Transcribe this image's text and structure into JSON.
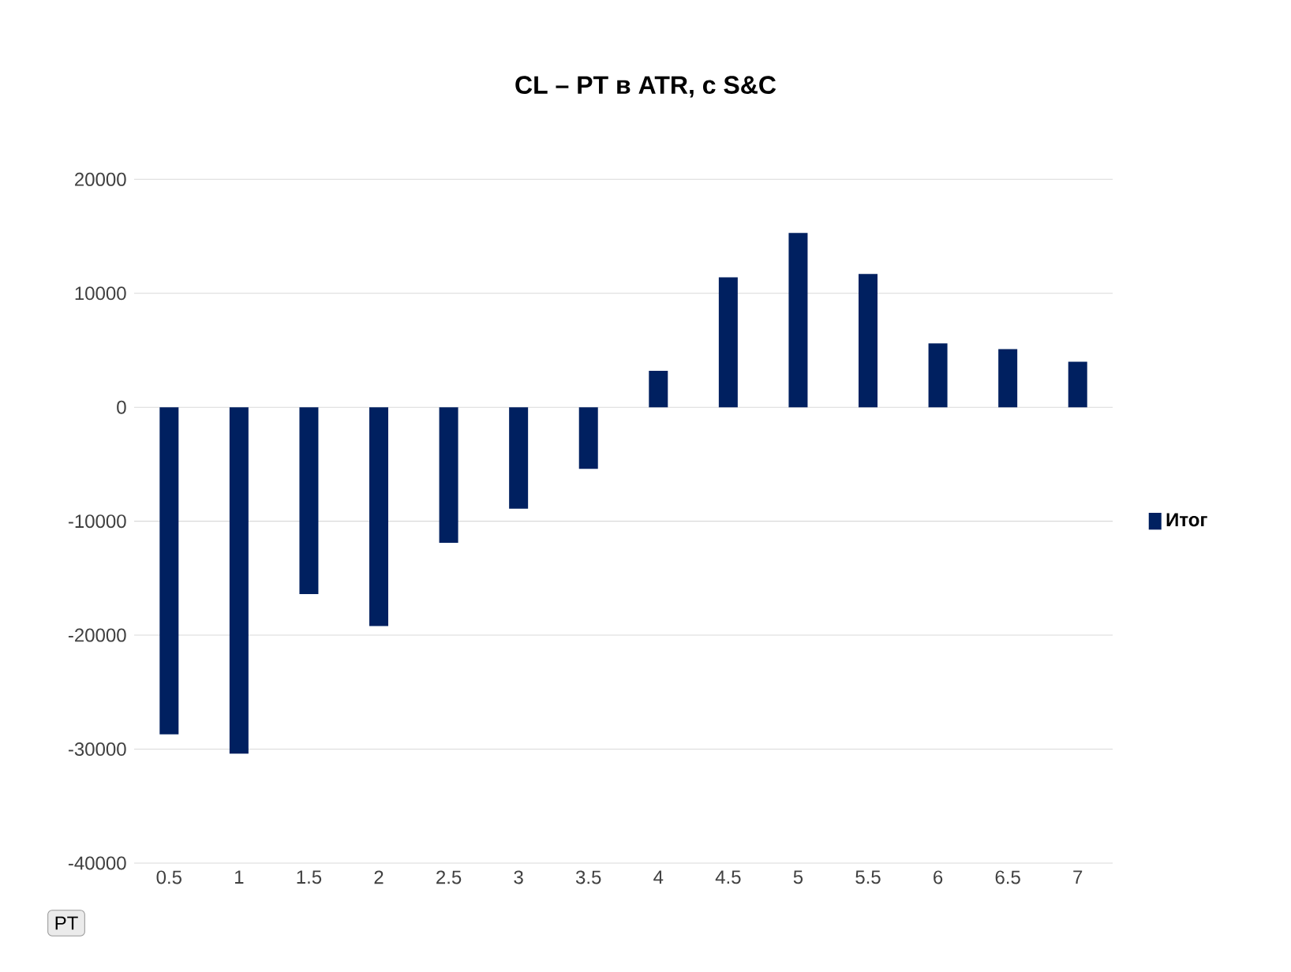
{
  "chart_data": {
    "type": "bar",
    "title": "CL – PT в ATR, с S&C",
    "categories": [
      "0.5",
      "1",
      "1.5",
      "2",
      "2.5",
      "3",
      "3.5",
      "4",
      "4.5",
      "5",
      "5.5",
      "6",
      "6.5",
      "7"
    ],
    "series": [
      {
        "name": "Итог",
        "color": "#002060",
        "values": [
          -28700,
          -30400,
          -16400,
          -19200,
          -11900,
          -8900,
          -5400,
          3200,
          11400,
          15300,
          11700,
          5600,
          5100,
          4000
        ]
      }
    ],
    "ylim": [
      -40000,
      20000
    ],
    "yticks": [
      -40000,
      -30000,
      -20000,
      -10000,
      0,
      10000,
      20000
    ],
    "grid": true,
    "legend": "right",
    "annotations": [
      "PT"
    ]
  }
}
